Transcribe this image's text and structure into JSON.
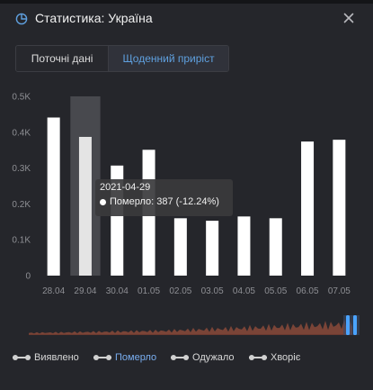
{
  "header": {
    "title": "Статистика: Україна",
    "icon": "chart-pie-icon",
    "close_icon": "close-icon"
  },
  "tabs": [
    {
      "label": "Поточні дані",
      "active": false
    },
    {
      "label": "Щоденний приріст",
      "active": true
    }
  ],
  "tooltip": {
    "date": "2021-04-29",
    "text": "Померло: 387 (-12.24%)"
  },
  "legend": [
    {
      "label": "Виявлено",
      "active": false
    },
    {
      "label": "Померло",
      "active": true
    },
    {
      "label": "Одужало",
      "active": false
    },
    {
      "label": "Хворіє",
      "active": false
    }
  ],
  "colors": {
    "background": "#25262b",
    "bar": "#ffffff",
    "accent": "#5fa0df",
    "range_handle": "#4aa3ff",
    "overview_area": "#8a4a3a"
  },
  "chart_data": {
    "type": "bar",
    "categories": [
      "28.04",
      "29.04",
      "30.04",
      "01.05",
      "02.05",
      "03.05",
      "04.05",
      "05.05",
      "06.05",
      "07.05"
    ],
    "series": [
      {
        "name": "Померло",
        "values": [
          441,
          387,
          307,
          351,
          160,
          153,
          165,
          160,
          374,
          379
        ]
      }
    ],
    "highlighted_index": 1,
    "y_ticks": [
      "0",
      "0.1K",
      "0.2K",
      "0.3K",
      "0.4K",
      "0.5K"
    ],
    "ylim": [
      0,
      500
    ],
    "grid": false
  }
}
